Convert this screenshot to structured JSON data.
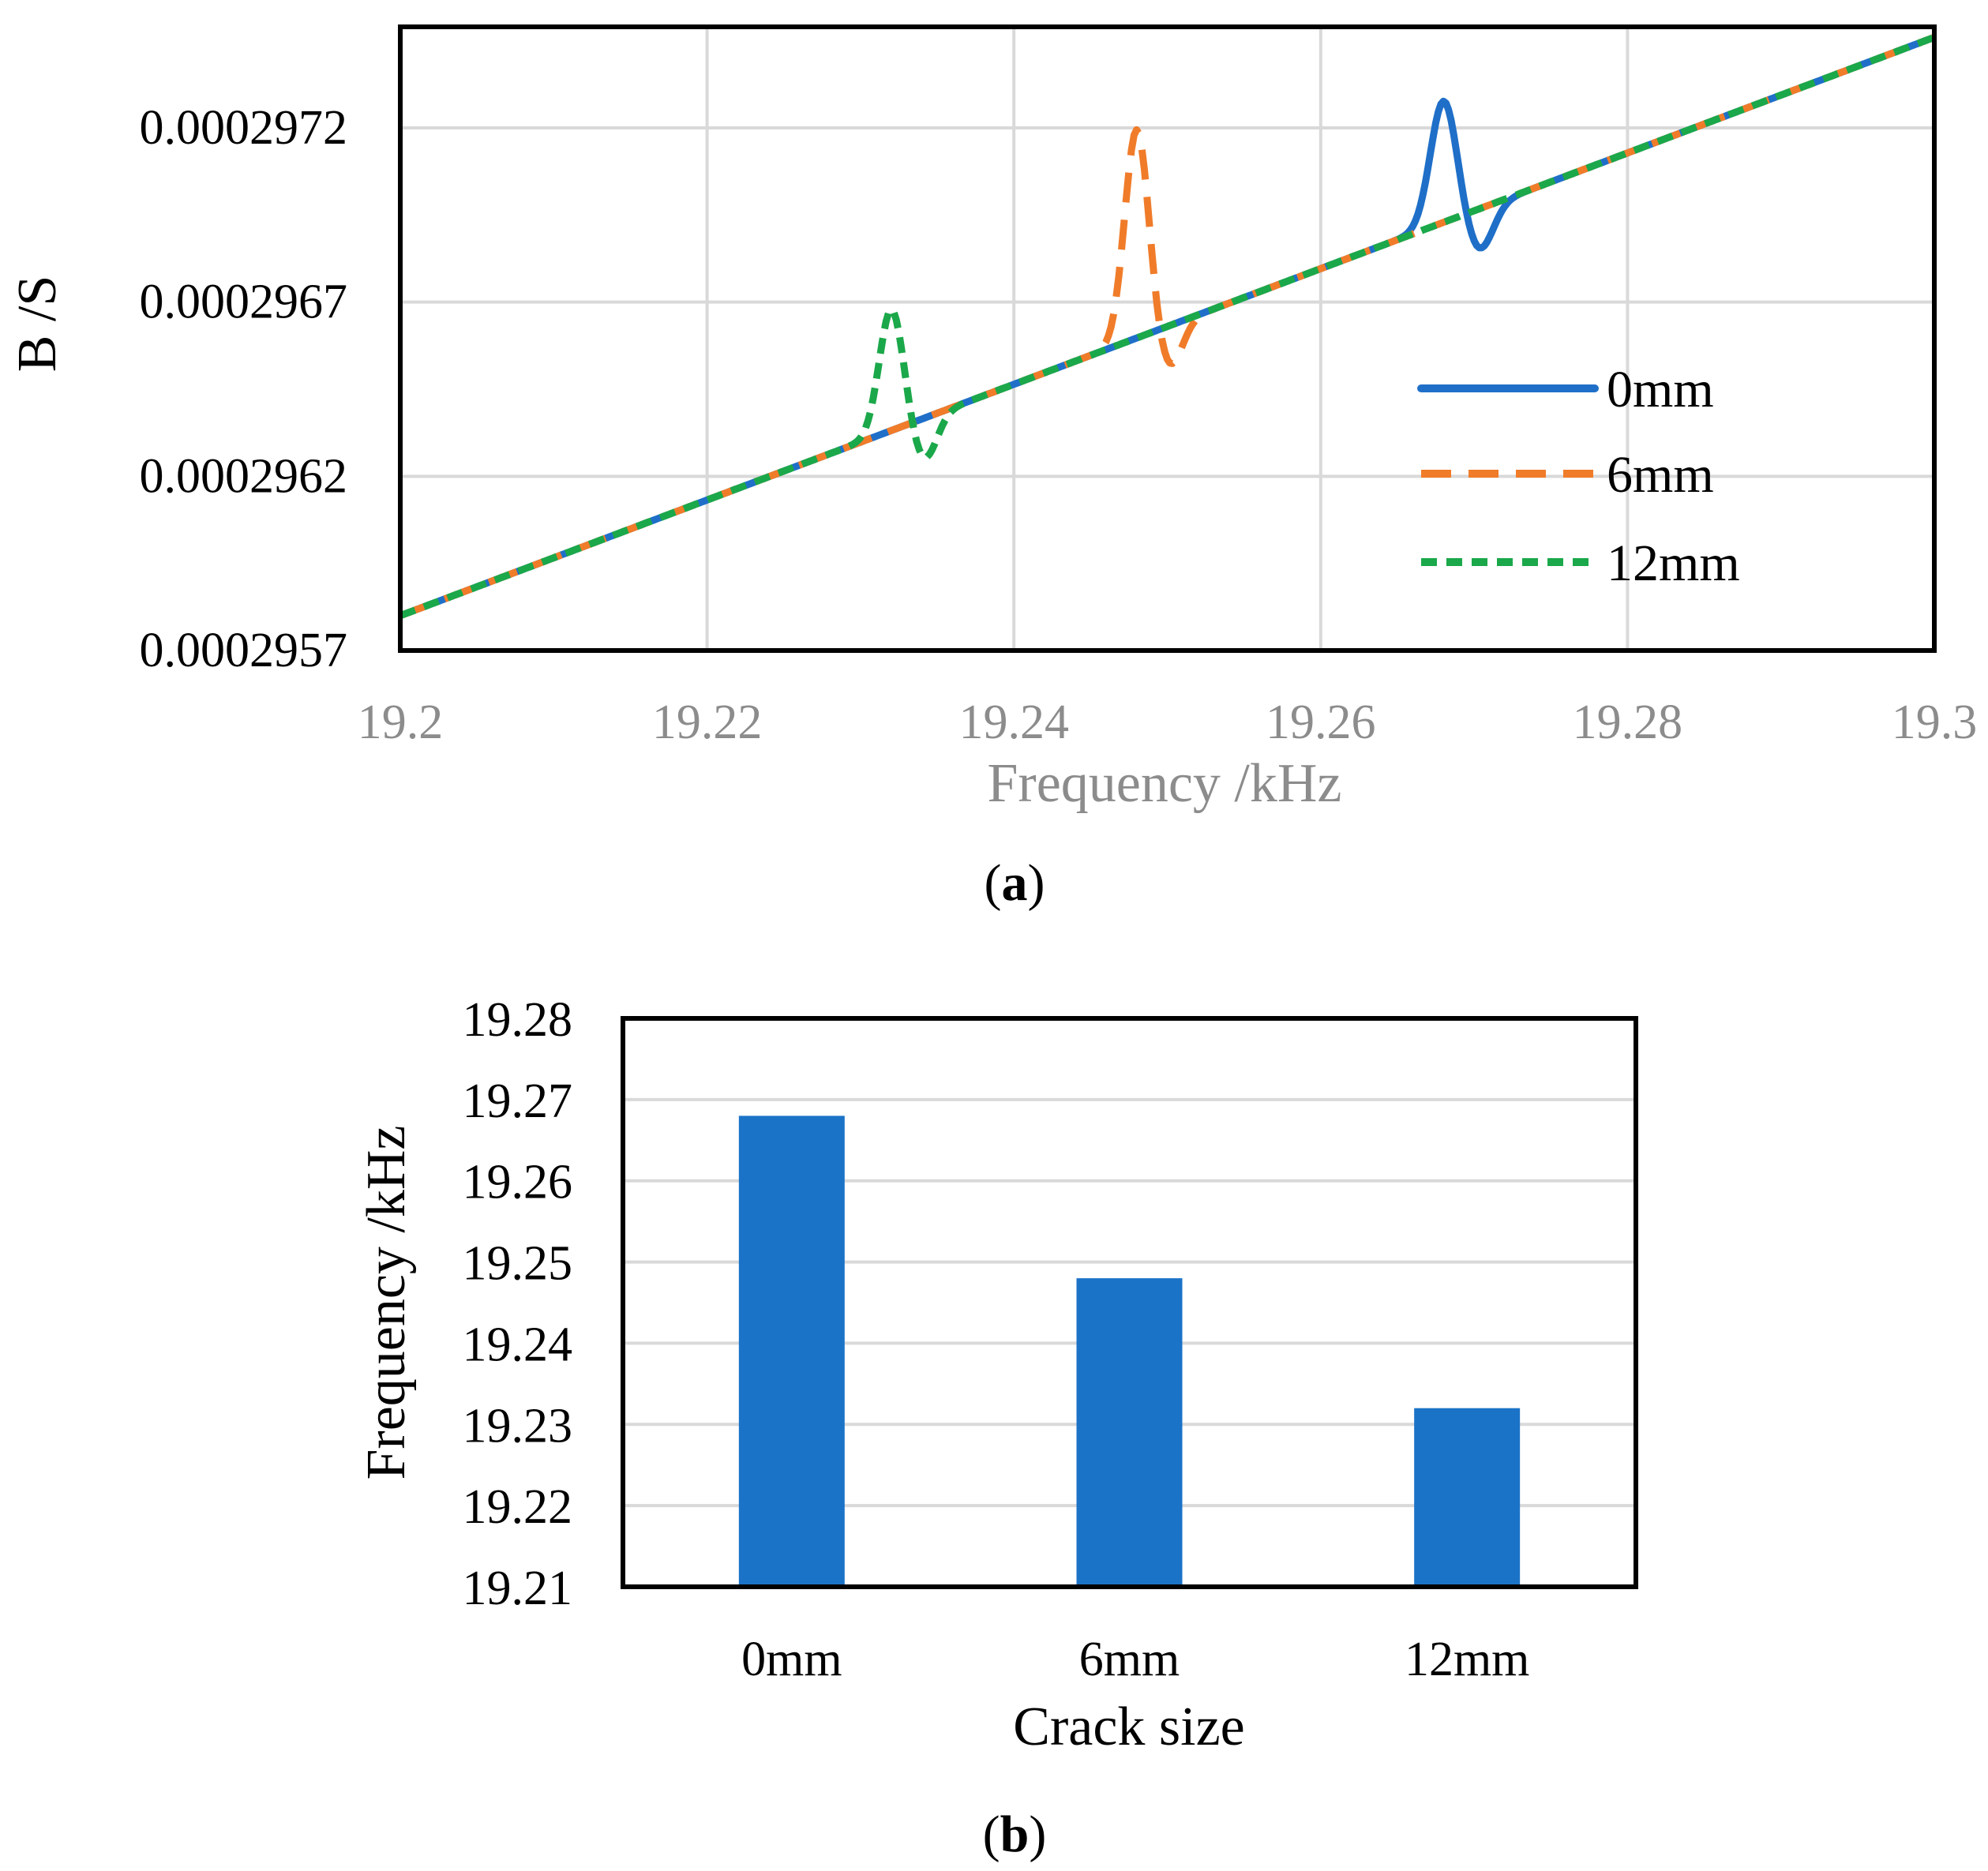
{
  "chart_data": [
    {
      "type": "line",
      "panel_label": "a",
      "xlabel": "Frequency /kHz",
      "ylabel": "B /S",
      "xlim": [
        19.2,
        19.3
      ],
      "ylim": [
        0.0002957,
        0.00029749
      ],
      "x_ticks": [
        "19.2",
        "19.22",
        "19.24",
        "19.26",
        "19.28",
        "19.3"
      ],
      "y_ticks": [
        "0.0002957",
        "0.0002962",
        "0.0002967",
        "0.0002972"
      ],
      "grid": true,
      "legend_position": "right",
      "series": [
        {
          "name": "0mm",
          "color": "#1f6fc8",
          "style": "solid",
          "baseline": [
            [
              19.2,
              0.0002958
            ],
            [
              19.3,
              0.00029746
            ]
          ],
          "resonance": {
            "x": 19.268,
            "width": 0.0012,
            "peak": 3.5e-07,
            "dip": 1.2e-07
          }
        },
        {
          "name": "6mm",
          "color": "#f07c2a",
          "style": "dashed",
          "baseline": [
            [
              19.2,
              0.0002958
            ],
            [
              19.3,
              0.00029746
            ]
          ],
          "resonance": {
            "x": 19.248,
            "width": 0.0011,
            "peak": 6e-07,
            "dip": 1.2e-07
          }
        },
        {
          "name": "12mm",
          "color": "#1ba84a",
          "style": "dotted",
          "baseline": [
            [
              19.2,
              0.0002958
            ],
            [
              19.3,
              0.00029746
            ]
          ],
          "resonance": {
            "x": 19.232,
            "width": 0.0011,
            "peak": 3.5e-07,
            "dip": 1.2e-07
          }
        }
      ]
    },
    {
      "type": "bar",
      "panel_label": "b",
      "xlabel": "Crack size",
      "ylabel": "Frequency /kHz",
      "categories": [
        "0mm",
        "6mm",
        "12mm"
      ],
      "values": [
        19.268,
        19.248,
        19.232
      ],
      "ylim": [
        19.21,
        19.28
      ],
      "y_ticks": [
        "19.21",
        "19.22",
        "19.23",
        "19.24",
        "19.25",
        "19.26",
        "19.27",
        "19.28"
      ],
      "grid": true,
      "bar_color": "#1b73c8"
    }
  ],
  "captions": {
    "a": {
      "open": "(",
      "letter": "a",
      "close": ")"
    },
    "b": {
      "open": "(",
      "letter": "b",
      "close": ")"
    }
  }
}
